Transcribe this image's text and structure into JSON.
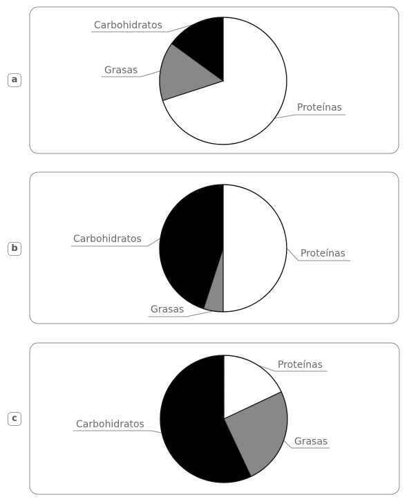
{
  "chart_data": [
    {
      "type": "pie",
      "panel": "a",
      "slices": [
        {
          "label": "Proteínas",
          "value": 70,
          "color": "#ffffff"
        },
        {
          "label": "Grasas",
          "value": 15,
          "color": "#888888"
        },
        {
          "label": "Carbohidratos",
          "value": 15,
          "color": "#000000"
        }
      ]
    },
    {
      "type": "pie",
      "panel": "b",
      "slices": [
        {
          "label": "Proteínas",
          "value": 50,
          "color": "#ffffff"
        },
        {
          "label": "Grasas",
          "value": 5,
          "color": "#888888"
        },
        {
          "label": "Carbohidratos",
          "value": 45,
          "color": "#000000"
        }
      ]
    },
    {
      "type": "pie",
      "panel": "c",
      "slices": [
        {
          "label": "Proteínas",
          "value": 18,
          "color": "#ffffff"
        },
        {
          "label": "Grasas",
          "value": 25,
          "color": "#888888"
        },
        {
          "label": "Carbohidratos",
          "value": 57,
          "color": "#000000"
        }
      ]
    }
  ]
}
